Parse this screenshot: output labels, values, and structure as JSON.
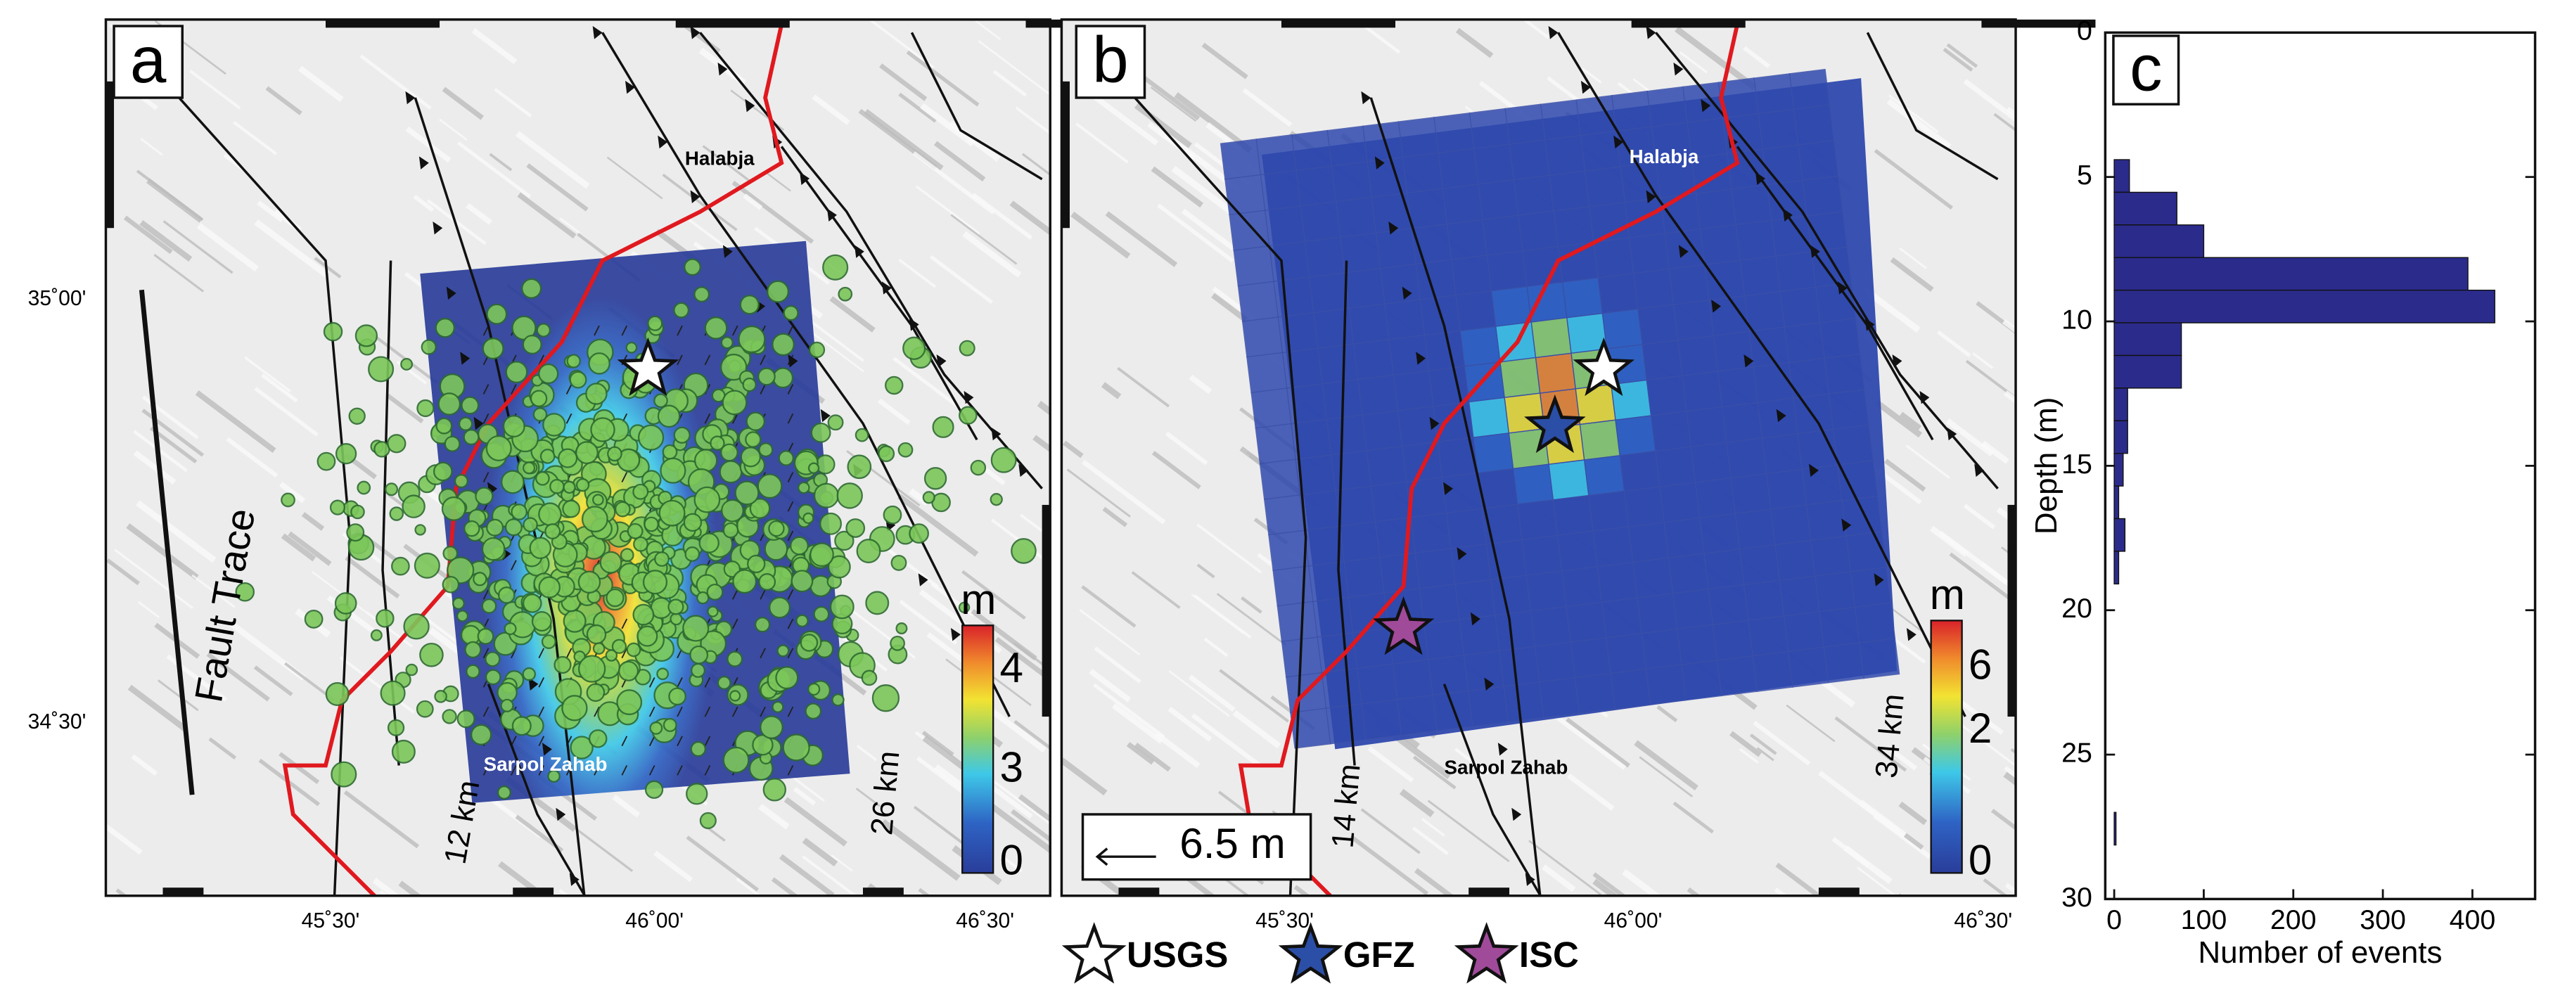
{
  "panel_a": {
    "label": "a",
    "places": [
      "Halabja",
      "Sarpol Zahab"
    ],
    "fault_label": "Fault Trace",
    "width_label": "12 km",
    "length_label": "26 km",
    "colorbar": {
      "title": "m",
      "ticks": [
        "0",
        "3",
        "4"
      ]
    }
  },
  "panel_b": {
    "label": "b",
    "places": [
      "Halabja",
      "Sarpol Zahab"
    ],
    "width_label": "14 km",
    "length_label": "34 km",
    "scale_label": "6.5 m",
    "colorbar": {
      "title": "m",
      "ticks": [
        "0",
        "2",
        "6"
      ]
    }
  },
  "map_axes": {
    "latitudes": [
      "35˚00'",
      "34˚30'"
    ],
    "longitudes": [
      "45˚30'",
      "46˚00'",
      "46˚30'"
    ]
  },
  "legend": [
    "USGS",
    "GFZ",
    "ISC"
  ],
  "chart_data": {
    "type": "histogram",
    "label": "c",
    "orientation": "horizontal",
    "color": "#2b2b8c",
    "x_label": "Number of events",
    "y_label": "Depth (m)",
    "bins": [
      4.4,
      5.53,
      6.66,
      7.79,
      8.92,
      10.05,
      11.18,
      12.31,
      13.44,
      14.57,
      15.7,
      16.83,
      17.96,
      19.09,
      20.22,
      21.35,
      22.48,
      23.61,
      24.74,
      25.87,
      27.0,
      28.13
    ],
    "values": [
      17,
      70,
      100,
      395,
      425,
      75,
      75,
      15,
      15,
      10,
      5,
      12,
      5,
      0,
      0,
      0,
      0,
      0,
      0,
      0,
      2
    ],
    "xlim": [
      -10,
      470
    ],
    "xticks": [
      0,
      100,
      200,
      300,
      400
    ],
    "ylim": [
      0,
      30
    ],
    "y_inverted": true,
    "yticks": [
      0,
      5,
      10,
      15,
      20,
      25,
      30
    ]
  }
}
